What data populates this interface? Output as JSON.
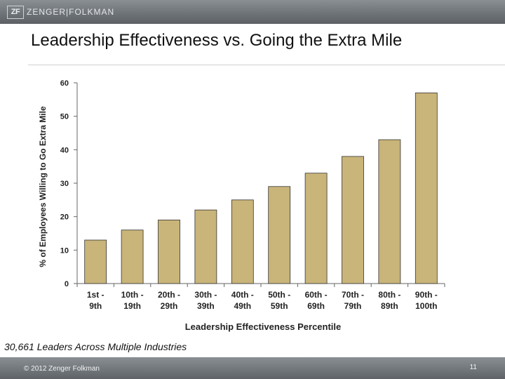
{
  "header": {
    "logo_mark": "ZF",
    "brand": "ZENGER|FOLKMAN"
  },
  "chart_data": {
    "type": "bar",
    "title": "Leadership Effectiveness vs. Going the Extra Mile",
    "xlabel": "Leadership Effectiveness Percentile",
    "ylabel": "% of Employees Willing to Go Extra Mile",
    "ylim": [
      0,
      60
    ],
    "yticks": [
      0,
      10,
      20,
      30,
      40,
      50,
      60
    ],
    "categories": [
      [
        "1st -",
        "9th"
      ],
      [
        "10th -",
        "19th"
      ],
      [
        "20th -",
        "29th"
      ],
      [
        "30th -",
        "39th"
      ],
      [
        "40th -",
        "49th"
      ],
      [
        "50th -",
        "59th"
      ],
      [
        "60th -",
        "69th"
      ],
      [
        "70th -",
        "79th"
      ],
      [
        "80th -",
        "89th"
      ],
      [
        "90th -",
        "100th"
      ]
    ],
    "values": [
      13,
      16,
      19,
      22,
      25,
      29,
      33,
      38,
      43,
      57
    ],
    "bar_color": "#c9b479",
    "grid": false,
    "legend": "none"
  },
  "footnote": "30,661 Leaders Across Multiple Industries",
  "footer": {
    "copyright": "© 2012 Zenger Folkman",
    "page_number": "11"
  }
}
